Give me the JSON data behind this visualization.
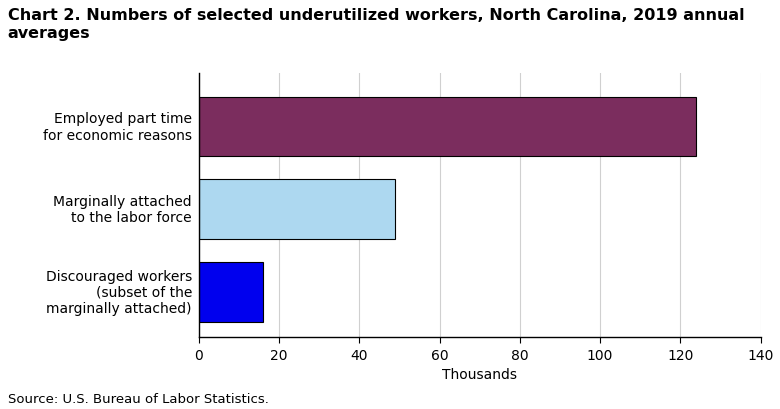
{
  "title": "Chart 2. Numbers of selected underutilized workers, North Carolina, 2019 annual averages",
  "categories": [
    "Discouraged workers\n(subset of the\nmarginally attached)",
    "Marginally attached\nto the labor force",
    "Employed part time\nfor economic reasons"
  ],
  "values": [
    16,
    49,
    124
  ],
  "bar_colors": [
    "#0000ee",
    "#add8f0",
    "#7b2d5e"
  ],
  "xlim": [
    0,
    140
  ],
  "xticks": [
    0,
    20,
    40,
    60,
    80,
    100,
    120,
    140
  ],
  "xlabel": "Thousands",
  "source": "Source: U.S. Bureau of Labor Statistics.",
  "title_fontsize": 11.5,
  "label_fontsize": 10,
  "tick_fontsize": 10,
  "source_fontsize": 9.5,
  "background_color": "#ffffff",
  "bar_edgecolor": "#000000"
}
